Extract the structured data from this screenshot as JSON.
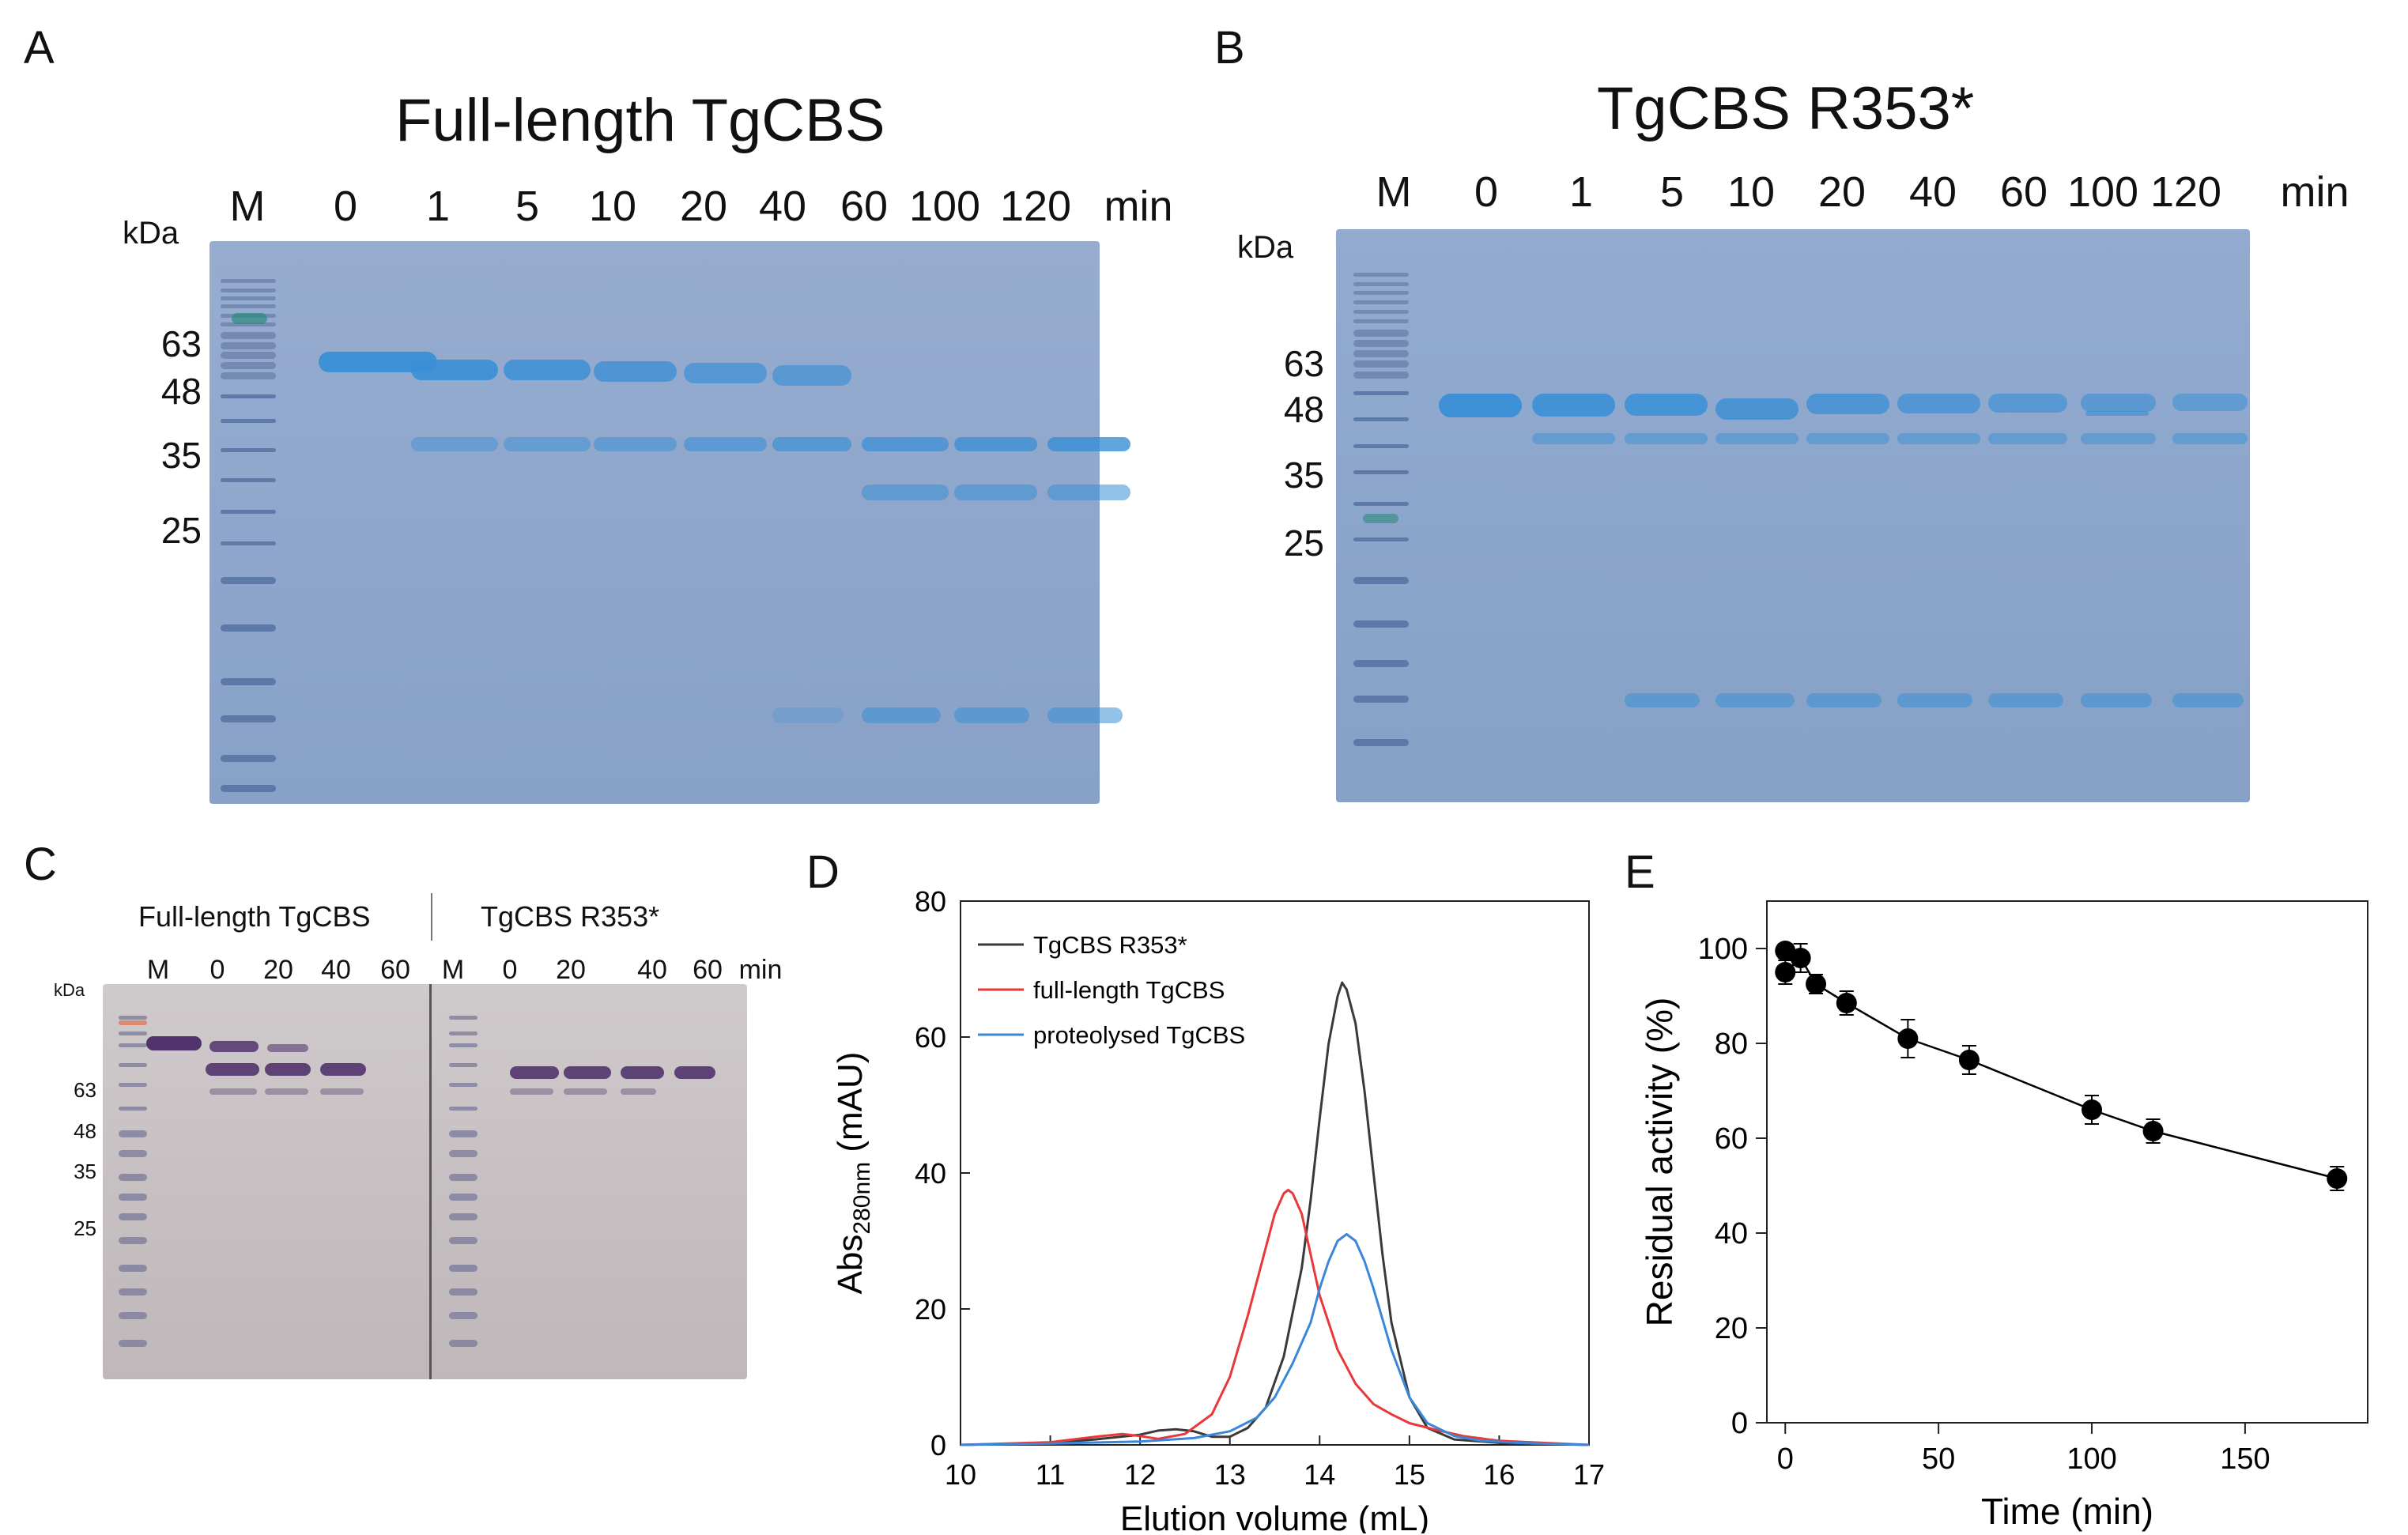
{
  "panels": {
    "A": {
      "label": "A",
      "title": "Full-length TgCBS",
      "lanes": [
        "M",
        "0",
        "1",
        "5",
        "10",
        "20",
        "40",
        "60",
        "100",
        "120"
      ],
      "unit": "min",
      "kda_label": "kDa",
      "markers": [
        "63",
        "48",
        "35",
        "25"
      ]
    },
    "B": {
      "label": "B",
      "title": "TgCBS R353*",
      "lanes": [
        "M",
        "0",
        "1",
        "5",
        "10",
        "20",
        "40",
        "60",
        "100",
        "120"
      ],
      "unit": "min",
      "kda_label": "kDa",
      "markers": [
        "63",
        "48",
        "35",
        "25"
      ]
    },
    "C": {
      "label": "C",
      "title_left": "Full-length  TgCBS",
      "title_right": "TgCBS R353*",
      "lanes": [
        "M",
        "0",
        "20",
        "40",
        "60",
        "M",
        "0",
        "20",
        "40",
        "60"
      ],
      "unit": "min",
      "kda_label": "kDa",
      "markers": [
        "63",
        "48",
        "35",
        "25"
      ]
    },
    "D": {
      "label": "D"
    },
    "E": {
      "label": "E"
    }
  },
  "colors": {
    "gel_blue": "#8ea6cc",
    "band_blue": "#3a8fd6",
    "gel_purple": "#c9c2c6",
    "band_purple": "#4a2a66",
    "r353": "#3a3a3a",
    "full_length": "#e8383a",
    "proteolysed": "#3a86d8"
  },
  "chart_data": [
    {
      "panel": "D",
      "type": "line",
      "title": "",
      "xlabel": "Elution volume (mL)",
      "ylabel": "Abs280nm (mAU)",
      "ylabel_main": "Abs",
      "ylabel_sub": "280nm",
      "ylabel_unit": " (mAU)",
      "xlim": [
        10,
        17
      ],
      "ylim": [
        0,
        80
      ],
      "xticks": [
        10,
        11,
        12,
        13,
        14,
        15,
        16,
        17
      ],
      "yticks": [
        0,
        20,
        40,
        60,
        80
      ],
      "legend_position": "top-left",
      "series": [
        {
          "name": "TgCBS R353*",
          "color": "#3a3a3a",
          "x": [
            10,
            11,
            11.5,
            12,
            12.2,
            12.4,
            12.6,
            12.8,
            13.0,
            13.2,
            13.4,
            13.6,
            13.8,
            13.9,
            14.0,
            14.1,
            14.2,
            14.25,
            14.3,
            14.4,
            14.5,
            14.6,
            14.7,
            14.8,
            15.0,
            15.2,
            15.5,
            16,
            17
          ],
          "y": [
            0,
            0.3,
            0.8,
            1.5,
            2.1,
            2.3,
            2.0,
            1.2,
            1.2,
            2.5,
            5.5,
            13,
            26,
            36,
            48,
            59,
            66,
            68,
            67,
            62,
            52,
            40,
            28,
            18,
            7,
            2.5,
            0.8,
            0.3,
            0
          ]
        },
        {
          "name": "full-length TgCBS",
          "color": "#e8383a",
          "x": [
            10,
            11,
            11.5,
            11.8,
            12.0,
            12.2,
            12.5,
            12.8,
            13.0,
            13.2,
            13.4,
            13.5,
            13.6,
            13.65,
            13.7,
            13.8,
            13.9,
            14.0,
            14.2,
            14.4,
            14.6,
            14.8,
            15.0,
            15.3,
            15.6,
            16,
            17
          ],
          "y": [
            0,
            0.4,
            1.2,
            1.6,
            1.3,
            0.9,
            1.6,
            4.5,
            10,
            19,
            29,
            34,
            37,
            37.5,
            37,
            34,
            28,
            22,
            14,
            9,
            6,
            4.5,
            3.2,
            2.2,
            1.3,
            0.6,
            0
          ]
        },
        {
          "name": "proteolysed TgCBS",
          "color": "#3a86d8",
          "x": [
            10,
            11,
            12,
            12.6,
            13.0,
            13.3,
            13.5,
            13.7,
            13.9,
            14.0,
            14.1,
            14.2,
            14.3,
            14.4,
            14.5,
            14.6,
            14.8,
            15.0,
            15.2,
            15.5,
            15.8,
            16.2,
            17
          ],
          "y": [
            0,
            0.2,
            0.5,
            1,
            2,
            4,
            7,
            12,
            18,
            23,
            27,
            30,
            31,
            30,
            27,
            23,
            14,
            7,
            3.2,
            1.3,
            0.6,
            0.3,
            0
          ]
        }
      ]
    },
    {
      "panel": "E",
      "type": "scatter",
      "title": "",
      "xlabel": "Time (min)",
      "ylabel": "Residual activity (%)",
      "xlim": [
        -6,
        190
      ],
      "ylim": [
        0,
        110
      ],
      "xticks": [
        0,
        50,
        100,
        150
      ],
      "yticks": [
        0,
        20,
        40,
        60,
        80,
        100
      ],
      "connected": true,
      "series": [
        {
          "name": "Residual activity",
          "color": "#000000",
          "x": [
            0,
            0,
            5,
            10,
            20,
            40,
            60,
            100,
            120,
            180
          ],
          "y": [
            99.5,
            95,
            98,
            92.5,
            88.5,
            81,
            76.5,
            66,
            61.5,
            51.5
          ],
          "error": [
            1.5,
            2.5,
            3,
            2,
            2.5,
            4,
            3,
            3,
            2.5,
            2.5
          ]
        }
      ]
    }
  ]
}
